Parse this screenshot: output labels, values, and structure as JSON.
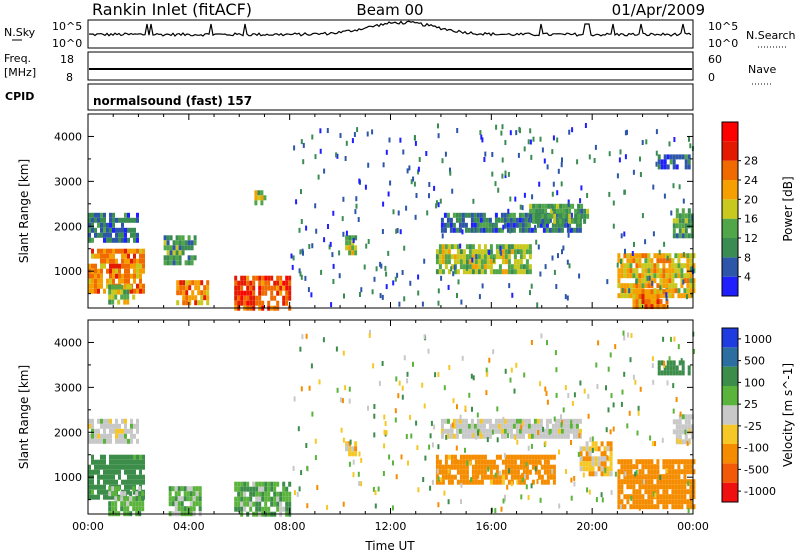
{
  "header": {
    "station": "Rankin Inlet (fitACF)",
    "beam": "Beam 00",
    "date": "01/Apr/2009"
  },
  "nsky_panel": {
    "label": "N.Sky",
    "ticks": [
      "10^5",
      "10^0"
    ],
    "right_label": "N.Search",
    "right_ticks": [
      "10^5",
      "10^0"
    ]
  },
  "freq_panel": {
    "label_1": "Freq.",
    "label_2": "[MHz]",
    "ticks": [
      "18",
      "8"
    ],
    "right_label": "Nave",
    "right_ticks": [
      "60",
      "0"
    ]
  },
  "cpid_panel": {
    "label": "CPID",
    "value": "normalsound (fast) 157"
  },
  "colors": {
    "power": [
      "#1f1fff",
      "#2d56a8",
      "#3b8c52",
      "#52a64a",
      "#c8c81e",
      "#f5a000",
      "#f06a00",
      "#e41a00",
      "#ff0000"
    ],
    "velocity": [
      "#f01010",
      "#f25a0a",
      "#f58c00",
      "#f5c828",
      "#c8c8c8",
      "#5ab43c",
      "#3c8c4a",
      "#2d6ea0",
      "#1f3ce0"
    ]
  },
  "chart_data": [
    {
      "type": "heatmap",
      "title": "Power",
      "ylabel": "Slant Range [km]",
      "xlabel": "",
      "x_ticks": [
        "00:00",
        "04:00",
        "08:00",
        "12:00",
        "16:00",
        "20:00",
        "00:00"
      ],
      "y_ticks": [
        "1000",
        "2000",
        "3000",
        "4000"
      ],
      "xlim": [
        0,
        24
      ],
      "ylim": [
        180,
        4500
      ],
      "colorbar_label": "Power [dB]",
      "colorbar_ticks": [
        "4",
        "8",
        "12",
        "16",
        "20",
        "24",
        "28"
      ],
      "regions": [
        {
          "t": [
            0.0,
            2.0
          ],
          "r": [
            1700,
            2300
          ],
          "level": 8
        },
        {
          "t": [
            0.0,
            2.2
          ],
          "r": [
            600,
            1500
          ],
          "level": 24
        },
        {
          "t": [
            0.8,
            1.8
          ],
          "r": [
            300,
            700
          ],
          "level": 16
        },
        {
          "t": [
            3.0,
            4.2
          ],
          "r": [
            1200,
            1800
          ],
          "level": 12
        },
        {
          "t": [
            3.5,
            4.8
          ],
          "r": [
            300,
            800
          ],
          "level": 24
        },
        {
          "t": [
            5.8,
            8.0
          ],
          "r": [
            200,
            900
          ],
          "level": 28
        },
        {
          "t": [
            6.6,
            7.0
          ],
          "r": [
            2500,
            2800
          ],
          "level": 16
        },
        {
          "t": [
            10.2,
            10.6
          ],
          "r": [
            1400,
            1800
          ],
          "level": 16
        },
        {
          "t": [
            13.8,
            17.5
          ],
          "r": [
            1000,
            1600
          ],
          "level": 16
        },
        {
          "t": [
            14.0,
            19.5
          ],
          "r": [
            1900,
            2300
          ],
          "level": 8
        },
        {
          "t": [
            17.5,
            19.8
          ],
          "r": [
            2100,
            2500
          ],
          "level": 12
        },
        {
          "t": [
            21.0,
            24.0
          ],
          "r": [
            500,
            1400
          ],
          "level": 20
        },
        {
          "t": [
            21.6,
            23.0
          ],
          "r": [
            200,
            600
          ],
          "level": 24
        },
        {
          "t": [
            22.6,
            23.8
          ],
          "r": [
            3300,
            3600
          ],
          "level": 8
        },
        {
          "t": [
            23.2,
            24.0
          ],
          "r": [
            1800,
            2400
          ],
          "level": 12
        }
      ]
    },
    {
      "type": "heatmap",
      "title": "Velocity",
      "ylabel": "Slant Range [km]",
      "xlabel": "Time UT",
      "x_ticks": [
        "00:00",
        "04:00",
        "08:00",
        "12:00",
        "16:00",
        "20:00",
        "00:00"
      ],
      "y_ticks": [
        "1000",
        "2000",
        "3000",
        "4000"
      ],
      "xlim": [
        0,
        24
      ],
      "ylim": [
        180,
        4500
      ],
      "colorbar_label": "Velocity [m s^-1]",
      "colorbar_ticks": [
        "1000",
        "500",
        "100",
        "25",
        "-25",
        "-100",
        "-500",
        "-1000"
      ],
      "regions": [
        {
          "t": [
            0.0,
            2.0
          ],
          "r": [
            1800,
            2300
          ],
          "level": 0
        },
        {
          "t": [
            0.0,
            2.2
          ],
          "r": [
            600,
            1500
          ],
          "level": 250
        },
        {
          "t": [
            0.8,
            2.2
          ],
          "r": [
            200,
            800
          ],
          "level": 60
        },
        {
          "t": [
            3.2,
            4.5
          ],
          "r": [
            200,
            800
          ],
          "level": 60
        },
        {
          "t": [
            5.8,
            8.0
          ],
          "r": [
            200,
            900
          ],
          "level": 80
        },
        {
          "t": [
            10.2,
            10.6
          ],
          "r": [
            1500,
            1800
          ],
          "level": -60
        },
        {
          "t": [
            13.8,
            18.5
          ],
          "r": [
            900,
            1500
          ],
          "level": -250
        },
        {
          "t": [
            14.0,
            19.5
          ],
          "r": [
            1900,
            2300
          ],
          "level": 0
        },
        {
          "t": [
            19.5,
            20.8
          ],
          "r": [
            1100,
            1800
          ],
          "level": -60
        },
        {
          "t": [
            21.0,
            24.0
          ],
          "r": [
            300,
            1400
          ],
          "level": -300
        },
        {
          "t": [
            22.6,
            23.8
          ],
          "r": [
            3300,
            3600
          ],
          "level": 300
        },
        {
          "t": [
            23.2,
            24.0
          ],
          "r": [
            1800,
            2400
          ],
          "level": 0
        }
      ]
    }
  ]
}
